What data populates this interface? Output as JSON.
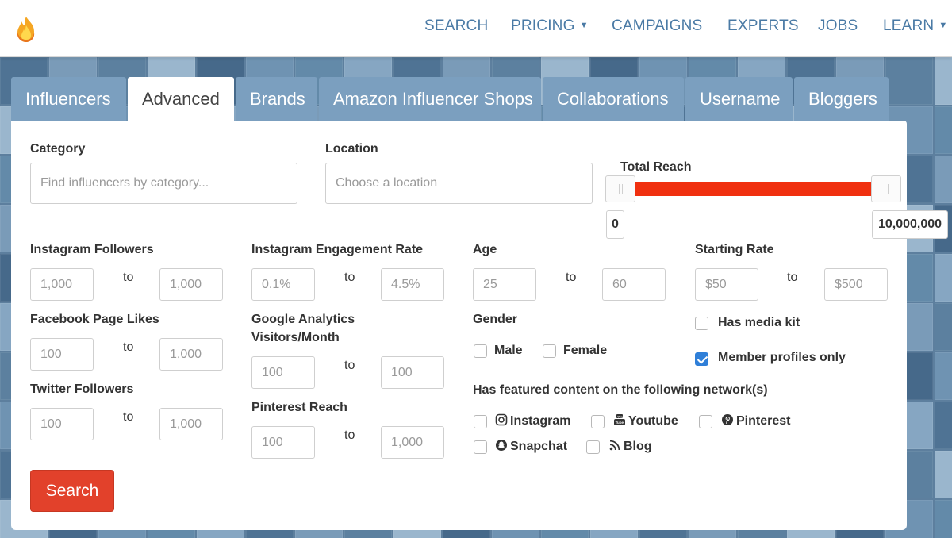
{
  "header": {
    "nav": [
      {
        "label": "SEARCH",
        "caret": false
      },
      {
        "label": "PRICING",
        "caret": true
      },
      {
        "label": "CAMPAIGNS",
        "caret": false
      },
      {
        "label": "EXPERTS",
        "caret": false
      },
      {
        "label": "JOBS",
        "caret": false
      },
      {
        "label": "LEARN",
        "caret": true
      }
    ],
    "caret_glyph": "▼"
  },
  "tabs": [
    {
      "label": "Influencers",
      "active": false
    },
    {
      "label": "Advanced",
      "active": true
    },
    {
      "label": "Brands",
      "active": false
    },
    {
      "label": "Amazon Influencer Shops",
      "active": false
    },
    {
      "label": "Collaborations",
      "active": false
    },
    {
      "label": "Username",
      "active": false
    },
    {
      "label": "Bloggers",
      "active": false
    }
  ],
  "form": {
    "category": {
      "label": "Category",
      "placeholder": "Find influencers by category..."
    },
    "location": {
      "label": "Location",
      "placeholder": "Choose a location"
    },
    "total_reach": {
      "label": "Total Reach",
      "min": "0",
      "max": "10,000,000"
    },
    "to": "to",
    "instagram_followers": {
      "label": "Instagram Followers",
      "from": "1,000",
      "to": "1,000"
    },
    "instagram_engagement": {
      "label": "Instagram Engagement Rate",
      "from": "0.1%",
      "to": "4.5%"
    },
    "age": {
      "label": "Age",
      "from": "25",
      "to": "60"
    },
    "starting_rate": {
      "label": "Starting Rate",
      "from": "$50",
      "to": "$500"
    },
    "facebook_likes": {
      "label": "Facebook Page Likes",
      "from": "100",
      "to": "1,000"
    },
    "google_analytics": {
      "label_line1": "Google Analytics",
      "label_line2": "Visitors/Month",
      "from": "100",
      "to": "100"
    },
    "gender": {
      "label": "Gender",
      "male": "Male",
      "female": "Female"
    },
    "has_media_kit": {
      "label": "Has media kit",
      "checked": false
    },
    "member_profiles_only": {
      "label": "Member profiles only",
      "checked": true
    },
    "twitter_followers": {
      "label": "Twitter Followers",
      "from": "100",
      "to": "1,000"
    },
    "pinterest_reach": {
      "label": "Pinterest Reach",
      "from": "100",
      "to": "1,000"
    },
    "networks": {
      "label": "Has featured content on the following network(s)",
      "instagram": "Instagram",
      "youtube": "Youtube",
      "pinterest": "Pinterest",
      "snapchat": "Snapchat",
      "blog": "Blog"
    },
    "search_button": "Search"
  },
  "colors": {
    "accent_red": "#e2412b",
    "slider_red": "#f0300f",
    "nav_blue": "#4a7aa5",
    "tab_blue": "#7b9fbf",
    "checkbox_blue": "#2f7fd8"
  }
}
